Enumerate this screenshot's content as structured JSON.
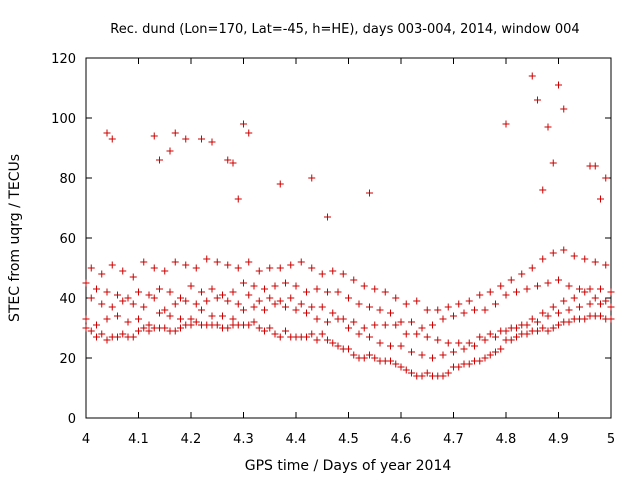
{
  "chart_data": {
    "type": "scatter",
    "title": "Rec. dund (Lon=170, Lat=-45, h=HE), days 003-004, 2014, window 004",
    "xlabel": "GPS time / Days of year 2014",
    "ylabel": "STEC from uqrg / TECUs",
    "xlim": [
      4.0,
      5.0
    ],
    "ylim": [
      0,
      120
    ],
    "xticks": [
      "4",
      "4.1",
      "4.2",
      "4.3",
      "4.4",
      "4.5",
      "4.6",
      "4.7",
      "4.8",
      "4.9",
      "5"
    ],
    "yticks": [
      "0",
      "20",
      "40",
      "60",
      "80",
      "100",
      "120"
    ],
    "marker": "plus",
    "grid": false,
    "colors": {
      "series": "#cc0000",
      "axis": "#000000"
    },
    "series": [
      {
        "name": "",
        "x": [
          4.0,
          4.01,
          4.02,
          4.03,
          4.04,
          4.05,
          4.06,
          4.07,
          4.08,
          4.09,
          4.1,
          4.11,
          4.12,
          4.13,
          4.14,
          4.15,
          4.16,
          4.17,
          4.18,
          4.19,
          4.2,
          4.21,
          4.22,
          4.23,
          4.24,
          4.25,
          4.26,
          4.27,
          4.28,
          4.29,
          4.3,
          4.31,
          4.32,
          4.33,
          4.34,
          4.35,
          4.36,
          4.37,
          4.38,
          4.39,
          4.4,
          4.41,
          4.42,
          4.43,
          4.44,
          4.45,
          4.46,
          4.47,
          4.48,
          4.49,
          4.5,
          4.51,
          4.52,
          4.53,
          4.54,
          4.55,
          4.56,
          4.57,
          4.58,
          4.59,
          4.6,
          4.61,
          4.62,
          4.63,
          4.64,
          4.65,
          4.66,
          4.67,
          4.68,
          4.69,
          4.7,
          4.71,
          4.72,
          4.73,
          4.74,
          4.75,
          4.76,
          4.77,
          4.78,
          4.79,
          4.8,
          4.81,
          4.82,
          4.83,
          4.84,
          4.85,
          4.86,
          4.87,
          4.88,
          4.89,
          4.9,
          4.91,
          4.92,
          4.93,
          4.94,
          4.95,
          4.96,
          4.97,
          4.98,
          4.99,
          5.0,
          4.0,
          4.02,
          4.04,
          4.06,
          4.08,
          4.1,
          4.12,
          4.14,
          4.16,
          4.18,
          4.2,
          4.22,
          4.24,
          4.26,
          4.28,
          4.3,
          4.32,
          4.34,
          4.36,
          4.38,
          4.4,
          4.42,
          4.44,
          4.46,
          4.48,
          4.5,
          4.52,
          4.54,
          4.56,
          4.58,
          4.6,
          4.62,
          4.64,
          4.66,
          4.68,
          4.7,
          4.72,
          4.74,
          4.76,
          4.78,
          4.8,
          4.82,
          4.84,
          4.86,
          4.88,
          4.9,
          4.92,
          4.94,
          4.96,
          4.98,
          5.0,
          4.01,
          4.03,
          4.05,
          4.07,
          4.09,
          4.11,
          4.13,
          4.15,
          4.17,
          4.19,
          4.21,
          4.23,
          4.25,
          4.27,
          4.29,
          4.31,
          4.33,
          4.35,
          4.37,
          4.39,
          4.41,
          4.43,
          4.45,
          4.47,
          4.49,
          4.51,
          4.53,
          4.55,
          4.57,
          4.59,
          4.61,
          4.63,
          4.65,
          4.67,
          4.69,
          4.71,
          4.73,
          4.75,
          4.77,
          4.79,
          4.81,
          4.83,
          4.85,
          4.87,
          4.89,
          4.91,
          4.93,
          4.95,
          4.97,
          4.99,
          4.0,
          4.02,
          4.04,
          4.06,
          4.08,
          4.1,
          4.12,
          4.14,
          4.16,
          4.18,
          4.2,
          4.22,
          4.24,
          4.26,
          4.28,
          4.3,
          4.32,
          4.34,
          4.36,
          4.38,
          4.4,
          4.42,
          4.44,
          4.46,
          4.48,
          4.5,
          4.52,
          4.54,
          4.56,
          4.58,
          4.6,
          4.62,
          4.64,
          4.66,
          4.68,
          4.7,
          4.72,
          4.74,
          4.76,
          4.78,
          4.8,
          4.82,
          4.84,
          4.86,
          4.88,
          4.9,
          4.92,
          4.94,
          4.96,
          4.98,
          5.0,
          4.01,
          4.03,
          4.05,
          4.07,
          4.09,
          4.11,
          4.13,
          4.15,
          4.17,
          4.19,
          4.21,
          4.23,
          4.25,
          4.27,
          4.29,
          4.31,
          4.33,
          4.35,
          4.37,
          4.39,
          4.41,
          4.43,
          4.45,
          4.47,
          4.49,
          4.51,
          4.53,
          4.55,
          4.57,
          4.59,
          4.61,
          4.63,
          4.65,
          4.67,
          4.69,
          4.71,
          4.73,
          4.75,
          4.77,
          4.79,
          4.81,
          4.83,
          4.85,
          4.87,
          4.89,
          4.91,
          4.93,
          4.95,
          4.97,
          4.99,
          4.04,
          4.05,
          4.13,
          4.14,
          4.17,
          4.19,
          4.22,
          4.24,
          4.27,
          4.28,
          4.3,
          4.31,
          4.43,
          4.54,
          4.8,
          4.85,
          4.86,
          4.88,
          4.89,
          4.9,
          4.91,
          4.96,
          4.97,
          4.99,
          4.98,
          4.16,
          4.29,
          4.37,
          4.46,
          4.87
        ],
        "y": [
          30,
          29,
          27,
          28,
          26,
          27,
          27,
          28,
          27,
          27,
          29,
          30,
          29,
          30,
          30,
          30,
          29,
          29,
          30,
          31,
          31,
          32,
          31,
          31,
          31,
          31,
          30,
          30,
          31,
          31,
          31,
          31,
          32,
          30,
          29,
          30,
          28,
          27,
          29,
          27,
          27,
          27,
          27,
          28,
          26,
          28,
          26,
          25,
          24,
          23,
          23,
          21,
          20,
          20,
          21,
          20,
          19,
          19,
          19,
          18,
          17,
          16,
          15,
          14,
          14,
          15,
          14,
          14,
          14,
          15,
          17,
          17,
          18,
          18,
          19,
          19,
          20,
          21,
          22,
          23,
          26,
          26,
          27,
          28,
          28,
          29,
          29,
          30,
          29,
          30,
          31,
          32,
          32,
          33,
          33,
          33,
          34,
          34,
          34,
          33,
          33,
          33,
          31,
          33,
          34,
          32,
          33,
          31,
          35,
          34,
          33,
          33,
          36,
          34,
          34,
          33,
          36,
          37,
          36,
          38,
          37,
          36,
          35,
          33,
          32,
          33,
          30,
          28,
          27,
          25,
          24,
          24,
          22,
          21,
          20,
          21,
          22,
          23,
          24,
          26,
          27,
          29,
          30,
          31,
          32,
          34,
          35,
          36,
          37,
          38,
          38,
          37,
          40,
          38,
          37,
          39,
          38,
          37,
          40,
          36,
          38,
          39,
          38,
          39,
          40,
          39,
          38,
          41,
          39,
          40,
          39,
          40,
          38,
          37,
          37,
          35,
          33,
          32,
          30,
          31,
          31,
          31,
          28,
          28,
          27,
          26,
          25,
          25,
          25,
          27,
          28,
          29,
          30,
          31,
          33,
          35,
          37,
          39,
          40,
          42,
          40,
          39,
          45,
          43,
          42,
          41,
          40,
          42,
          41,
          43,
          42,
          40,
          44,
          42,
          43,
          41,
          42,
          45,
          44,
          43,
          44,
          45,
          44,
          42,
          43,
          42,
          42,
          40,
          38,
          37,
          36,
          35,
          32,
          32,
          30,
          31,
          33,
          34,
          35,
          36,
          36,
          38,
          41,
          42,
          43,
          44,
          45,
          46,
          44,
          43,
          43,
          43,
          42,
          50,
          48,
          51,
          49,
          47,
          52,
          50,
          49,
          52,
          51,
          50,
          53,
          52,
          51,
          50,
          52,
          49,
          50,
          50,
          51,
          52,
          50,
          48,
          49,
          48,
          46,
          44,
          43,
          42,
          40,
          38,
          39,
          36,
          36,
          37,
          38,
          39,
          41,
          42,
          44,
          46,
          48,
          50,
          53,
          55,
          56,
          54,
          53,
          52,
          51,
          95,
          93,
          94,
          86,
          95,
          93,
          93,
          92,
          86,
          85,
          98,
          95,
          80,
          75,
          98,
          114,
          106,
          97,
          85,
          111,
          103,
          84,
          84,
          80,
          73,
          89,
          73,
          78,
          67,
          76
        ]
      }
    ]
  }
}
